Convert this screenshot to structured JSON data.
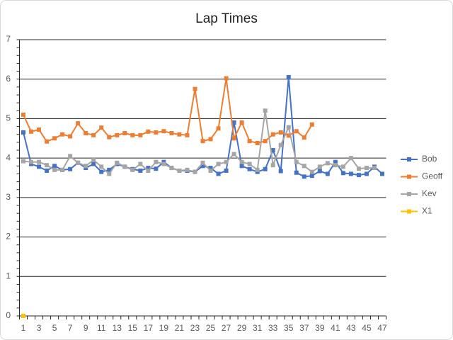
{
  "chart_data": {
    "type": "line",
    "title": "Lap Times",
    "categories": [
      1,
      null,
      3,
      null,
      5,
      null,
      7,
      null,
      9,
      null,
      11,
      null,
      13,
      null,
      15,
      null,
      17,
      null,
      19,
      null,
      21,
      null,
      23,
      null,
      25,
      null,
      27,
      null,
      29,
      null,
      31,
      null,
      33,
      null,
      35,
      null,
      37,
      null,
      39,
      null,
      41,
      null,
      43,
      null,
      45,
      null,
      47
    ],
    "series": [
      {
        "name": "Bob",
        "color": "#4472c4",
        "values": [
          4.65,
          3.85,
          3.78,
          3.68,
          3.8,
          3.7,
          3.72,
          3.88,
          3.75,
          3.85,
          3.65,
          3.7,
          3.85,
          3.78,
          3.72,
          3.68,
          3.75,
          3.73,
          3.9,
          3.75,
          3.68,
          3.68,
          3.65,
          3.8,
          3.75,
          3.6,
          3.68,
          4.9,
          3.8,
          3.72,
          3.65,
          3.72,
          4.2,
          3.67,
          6.05,
          3.63,
          3.53,
          3.55,
          3.67,
          3.6,
          3.9,
          3.62,
          3.6,
          3.57,
          3.6,
          3.78,
          3.6
        ]
      },
      {
        "name": "Geoff",
        "color": "#ed7d31",
        "values": [
          5.1,
          4.67,
          4.72,
          4.42,
          4.5,
          4.6,
          4.55,
          4.88,
          4.63,
          4.58,
          4.77,
          4.53,
          4.58,
          4.63,
          4.58,
          4.58,
          4.67,
          4.65,
          4.68,
          4.63,
          4.6,
          4.58,
          5.75,
          4.43,
          4.48,
          4.75,
          6.02,
          4.5,
          4.9,
          4.43,
          4.38,
          4.43,
          4.6,
          4.65,
          4.57,
          4.68,
          4.52,
          4.85,
          null,
          null,
          null,
          null,
          null,
          null,
          null,
          null,
          null
        ]
      },
      {
        "name": "Kev",
        "color": "#a5a5a5",
        "values": [
          3.92,
          3.9,
          3.9,
          3.82,
          3.7,
          3.7,
          4.05,
          3.88,
          3.8,
          3.95,
          3.78,
          3.6,
          3.88,
          3.78,
          3.7,
          3.85,
          3.68,
          3.9,
          3.85,
          3.75,
          3.68,
          3.7,
          3.65,
          3.88,
          3.68,
          3.85,
          3.9,
          4.1,
          3.9,
          3.85,
          3.7,
          5.2,
          3.82,
          4.33,
          4.78,
          3.9,
          3.8,
          3.65,
          3.78,
          3.87,
          3.82,
          3.78,
          4.0,
          3.73,
          3.75,
          3.75,
          null
        ]
      },
      {
        "name": "X1",
        "color": "#ffc000",
        "values": [
          0,
          null,
          null,
          null,
          null,
          null,
          null,
          null,
          null,
          null,
          null,
          null,
          null,
          null,
          null,
          null,
          null,
          null,
          null,
          null,
          null,
          null,
          null,
          null,
          null,
          null,
          null,
          null,
          null,
          null,
          null,
          null,
          null,
          null,
          null,
          null,
          null,
          null,
          null,
          null,
          null,
          null,
          null,
          null,
          null,
          null,
          null
        ]
      }
    ],
    "ylim": [
      0,
      7
    ],
    "yticks": [
      0,
      1,
      2,
      3,
      4,
      5,
      6,
      7
    ],
    "grid": true,
    "legend": "right"
  }
}
